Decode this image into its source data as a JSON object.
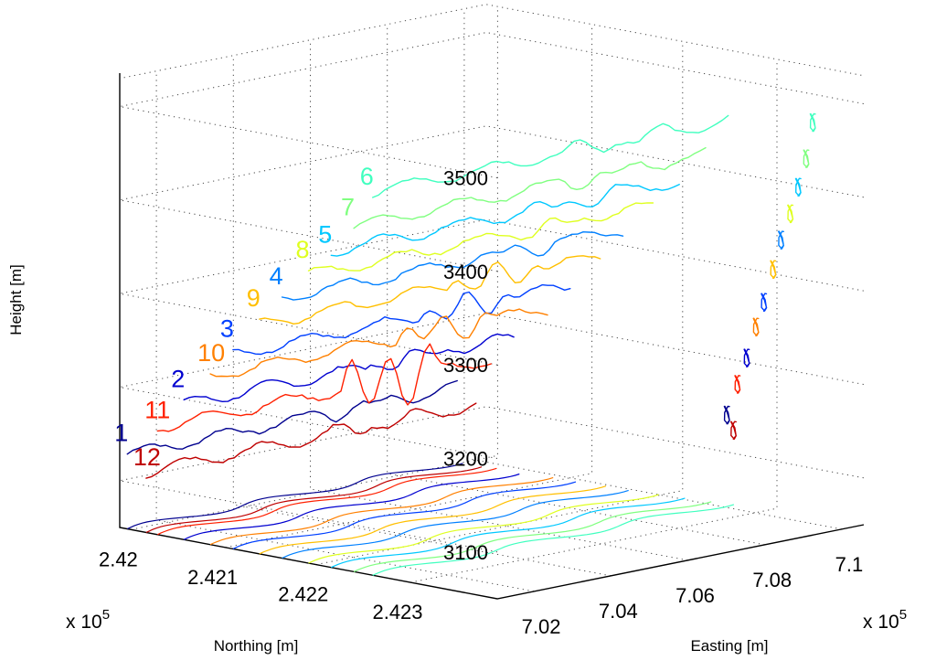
{
  "chart_data": {
    "type": "line3d",
    "xlabel": "Easting [m]",
    "ylabel": "Northing [m]",
    "zlabel": "Height [m]",
    "x_exponent": "x 10",
    "x_exponent_power": "5",
    "y_exponent": "x 10",
    "y_exponent_power": "5",
    "x_ticks": [
      "7.02",
      "7.04",
      "7.06",
      "7.08",
      "7.1"
    ],
    "y_ticks": [
      "2.42",
      "2.421",
      "2.422",
      "2.423"
    ],
    "z_ticks": [
      "3100",
      "3200",
      "3300",
      "3400",
      "3500"
    ],
    "series": [
      {
        "name": "1",
        "color": "#00008F",
        "height": 3130
      },
      {
        "name": "2",
        "color": "#0000D0",
        "height": 3195
      },
      {
        "name": "3",
        "color": "#0040FF",
        "height": 3258
      },
      {
        "name": "4",
        "color": "#0080FF",
        "height": 3328
      },
      {
        "name": "5",
        "color": "#00C8FF",
        "height": 3388
      },
      {
        "name": "6",
        "color": "#40FFBF",
        "height": 3460
      },
      {
        "name": "7",
        "color": "#80FF80",
        "height": 3420
      },
      {
        "name": "8",
        "color": "#DFFF20",
        "height": 3358
      },
      {
        "name": "9",
        "color": "#FFBF00",
        "height": 3295
      },
      {
        "name": "10",
        "color": "#FF8000",
        "height": 3230
      },
      {
        "name": "11",
        "color": "#FF2000",
        "height": 3165
      },
      {
        "name": "12",
        "color": "#BF0000",
        "height": 3115
      }
    ]
  }
}
